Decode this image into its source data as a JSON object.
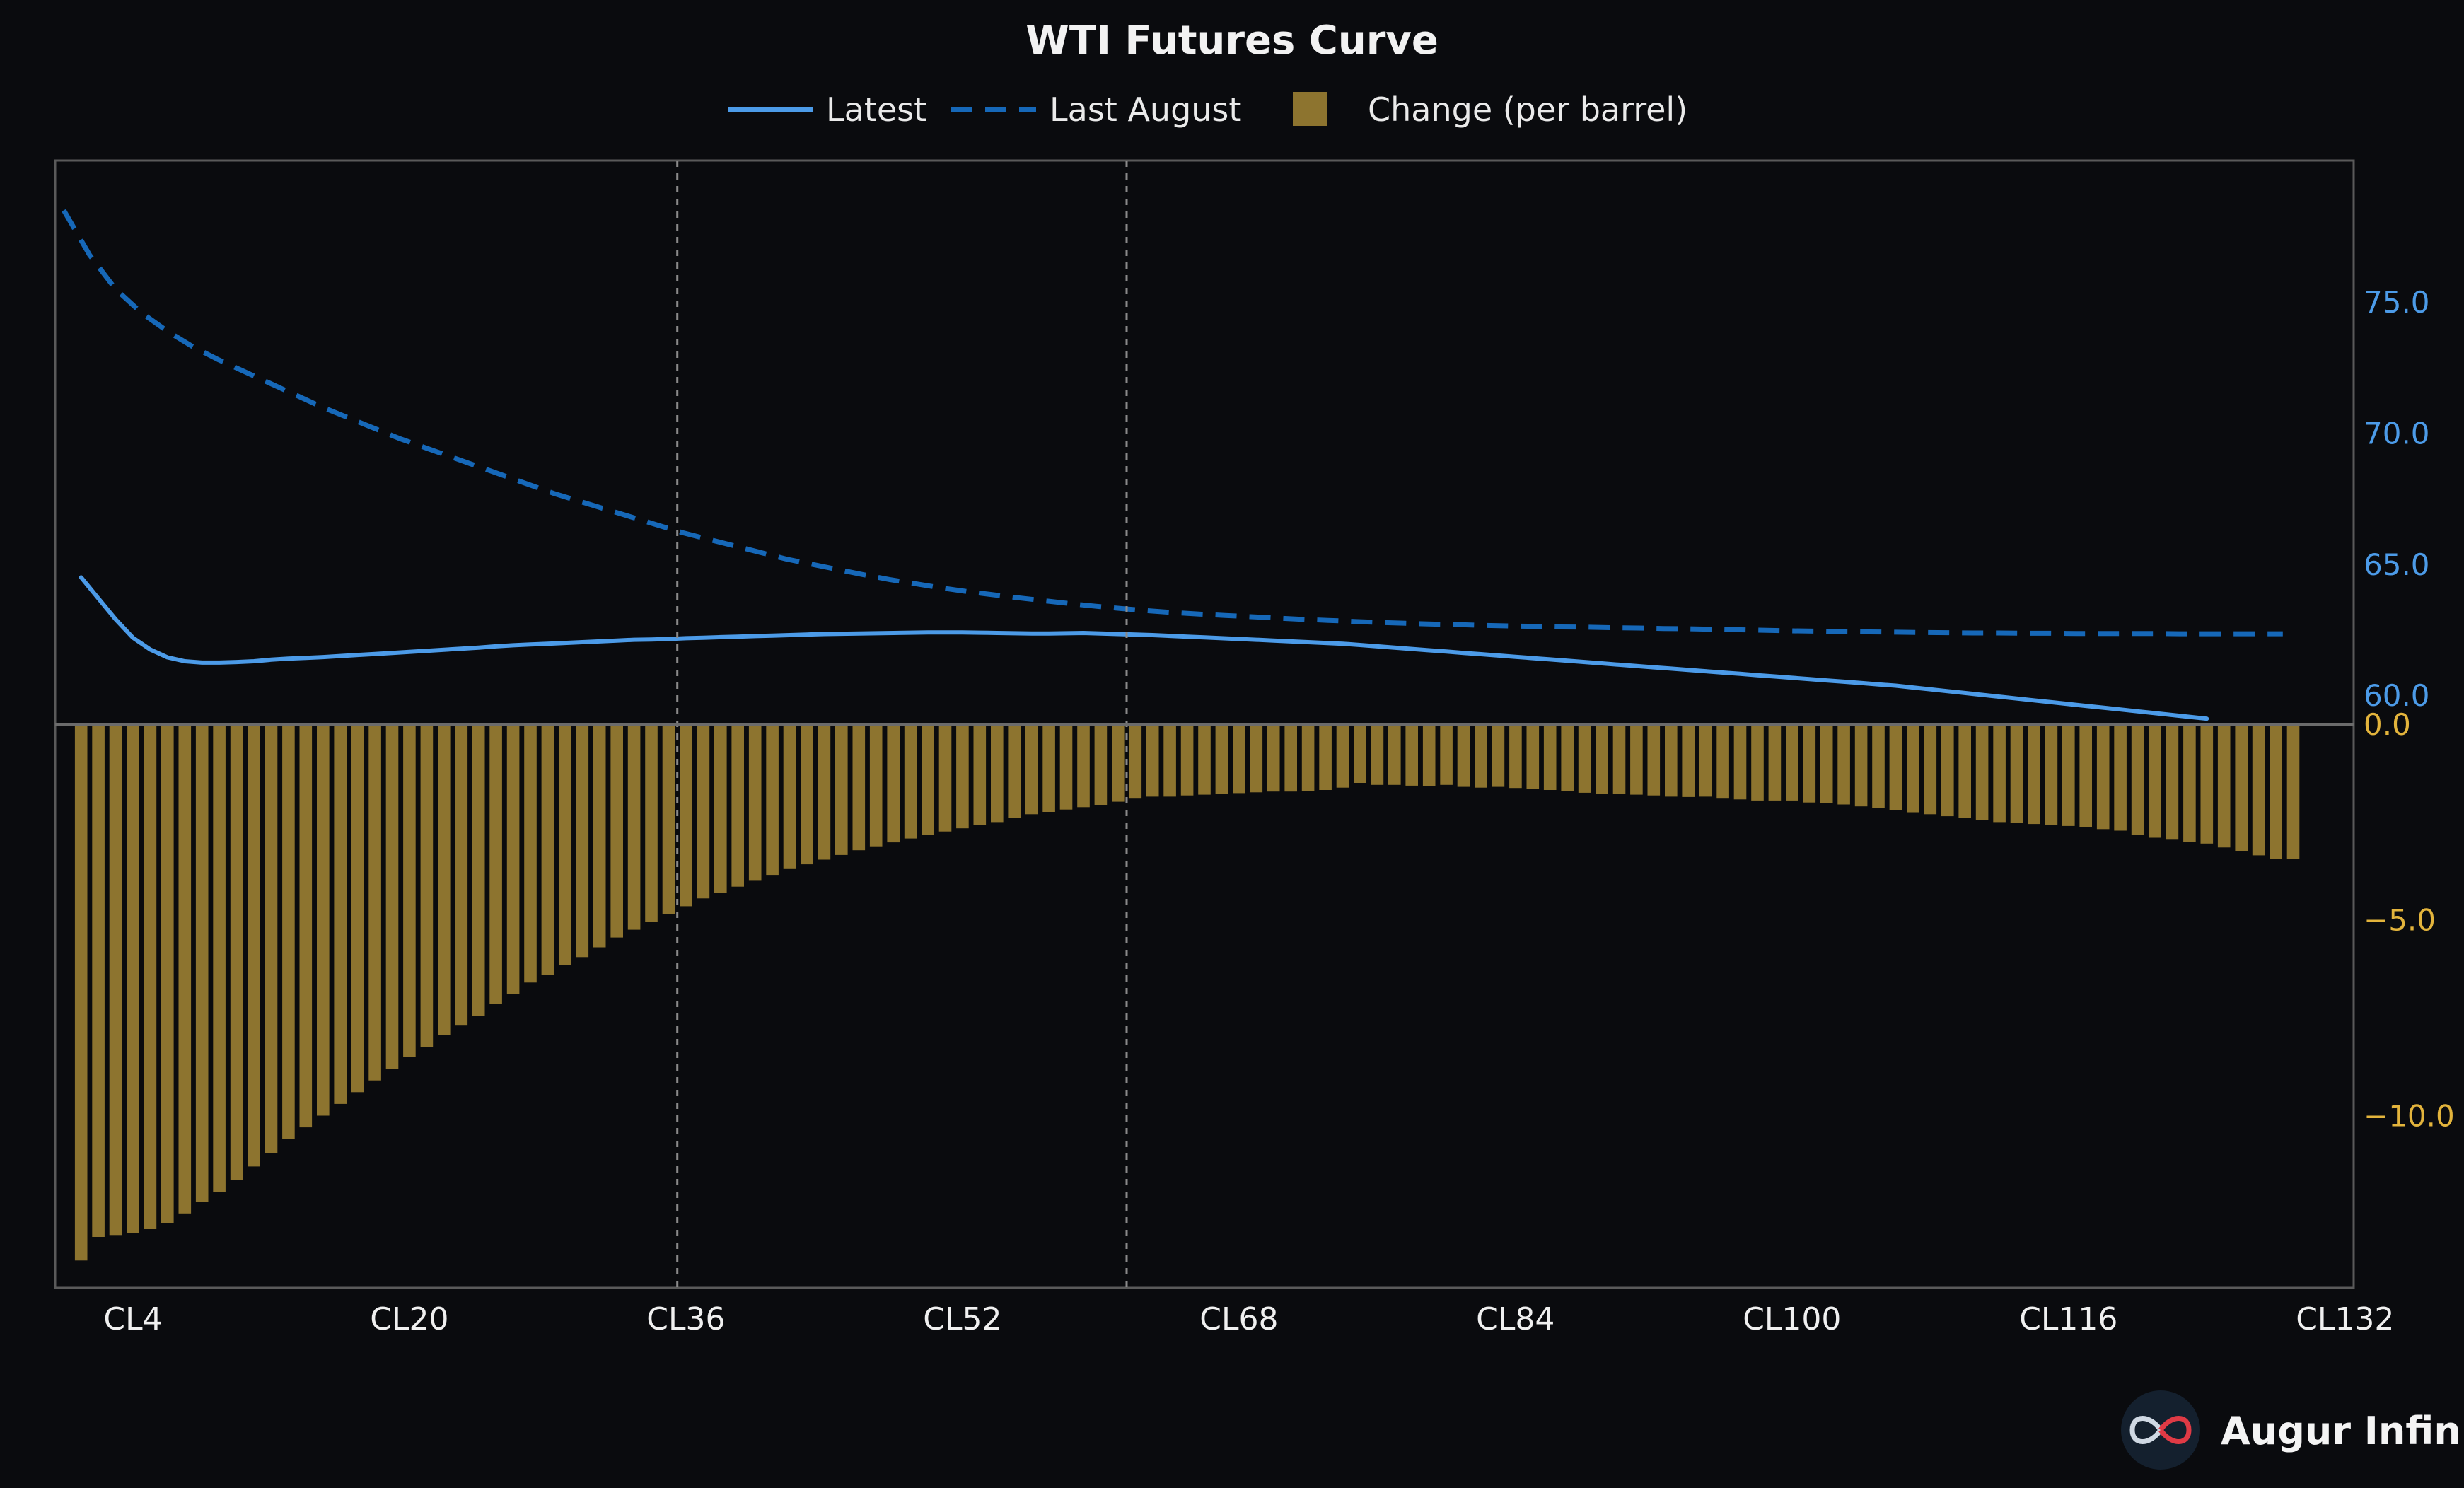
{
  "chart_data": {
    "type": "line",
    "title": "WTI Futures Curve",
    "legend": {
      "placement": "top-center",
      "entries": [
        {
          "label": "Latest",
          "style": "solid",
          "color": "#4c9be8"
        },
        {
          "label": "Last August",
          "style": "dashed",
          "color": "#1668b8"
        },
        {
          "label": "Change (per barrel)",
          "style": "bar",
          "color": "#8d742f"
        }
      ]
    },
    "x_axis": {
      "tick_labels": [
        "CL4",
        "CL20",
        "CL36",
        "CL52",
        "CL68",
        "CL84",
        "CL100",
        "CL116",
        "CL132"
      ],
      "tick_positions": [
        4,
        20,
        36,
        52,
        68,
        84,
        100,
        116,
        132
      ],
      "range": [
        -0.5,
        132.5
      ],
      "reference_lines": [
        35.5,
        61.5
      ]
    },
    "y_axes": {
      "price": {
        "ticks": [
          "60.0",
          "65.0",
          "70.0",
          "75.0"
        ],
        "tick_values": [
          60,
          65,
          70,
          75
        ],
        "range": [
          58.9,
          80.4
        ],
        "side": "right",
        "color": "#4c9be8"
      },
      "change": {
        "ticks": [
          "0.0",
          "−5.0",
          "−10.0"
        ],
        "tick_values": [
          0,
          -5,
          -10
        ],
        "range": [
          -14.4,
          0
        ],
        "side": "right",
        "color": "#e3b43c"
      }
    },
    "series": [
      {
        "name": "Latest",
        "x_start": 1,
        "values": [
          64.5,
          63.7,
          62.9,
          62.2,
          61.75,
          61.45,
          61.3,
          61.25,
          61.25,
          61.27,
          61.3,
          61.36,
          61.4,
          61.43,
          61.46,
          61.5,
          61.54,
          61.58,
          61.62,
          61.66,
          61.7,
          61.74,
          61.78,
          61.82,
          61.87,
          61.91,
          61.94,
          61.97,
          62.0,
          62.03,
          62.06,
          62.09,
          62.12,
          62.13,
          62.15,
          62.18,
          62.2,
          62.22,
          62.24,
          62.26,
          62.28,
          62.3,
          62.32,
          62.34,
          62.35,
          62.36,
          62.37,
          62.38,
          62.39,
          62.4,
          62.4,
          62.4,
          62.39,
          62.38,
          62.37,
          62.36,
          62.36,
          62.37,
          62.38,
          62.36,
          62.34,
          62.32,
          62.3,
          62.27,
          62.24,
          62.21,
          62.18,
          62.15,
          62.12,
          62.09,
          62.06,
          62.03,
          62.0,
          61.97,
          61.92,
          61.87,
          61.82,
          61.77,
          61.72,
          61.67,
          61.62,
          61.57,
          61.52,
          61.47,
          61.42,
          61.37,
          61.32,
          61.27,
          61.22,
          61.17,
          61.12,
          61.07,
          61.02,
          60.97,
          60.92,
          60.87,
          60.82,
          60.77,
          60.72,
          60.67,
          60.62,
          60.57,
          60.52,
          60.47,
          60.42,
          60.37,
          60.3,
          60.23,
          60.16,
          60.09,
          60.02,
          59.95,
          59.88,
          59.81,
          59.74,
          59.67,
          59.6,
          59.53,
          59.46,
          59.39,
          59.32,
          59.25,
          59.18,
          59.11
        ]
      },
      {
        "name": "Last August",
        "x_start": 0,
        "values": [
          78.5,
          76.8,
          75.5,
          74.6,
          73.9,
          73.3,
          72.8,
          72.35,
          71.9,
          71.45,
          71.0,
          70.6,
          70.2,
          69.8,
          69.45,
          69.1,
          68.75,
          68.4,
          68.05,
          67.7,
          67.4,
          67.1,
          66.8,
          66.5,
          66.2,
          65.95,
          65.7,
          65.45,
          65.2,
          65.0,
          64.8,
          64.6,
          64.42,
          64.26,
          64.1,
          63.96,
          63.84,
          63.72,
          63.61,
          63.5,
          63.4,
          63.31,
          63.23,
          63.16,
          63.1,
          63.05,
          63.0,
          62.95,
          62.9,
          62.86,
          62.82,
          62.78,
          62.75,
          62.72,
          62.7,
          62.67,
          62.65,
          62.63,
          62.61,
          62.6,
          62.58,
          62.57,
          62.55,
          62.54,
          62.52,
          62.5,
          62.48,
          62.46,
          62.45,
          62.43,
          62.42,
          62.41,
          62.4,
          62.39,
          62.38,
          62.38,
          62.37,
          62.37,
          62.36,
          62.36,
          62.36,
          62.36,
          62.35,
          62.35,
          62.35,
          62.35,
          62.35
        ]
      },
      {
        "name": "Change (per barrel)",
        "type": "bar",
        "x_start": 1,
        "values": [
          -13.7,
          -13.1,
          -13.05,
          -13.0,
          -12.9,
          -12.75,
          -12.5,
          -12.2,
          -11.95,
          -11.65,
          -11.3,
          -10.95,
          -10.6,
          -10.3,
          -10.0,
          -9.7,
          -9.4,
          -9.1,
          -8.8,
          -8.5,
          -8.25,
          -7.95,
          -7.7,
          -7.45,
          -7.15,
          -6.9,
          -6.6,
          -6.4,
          -6.15,
          -5.95,
          -5.7,
          -5.45,
          -5.25,
          -5.05,
          -4.85,
          -4.65,
          -4.45,
          -4.3,
          -4.15,
          -4.0,
          -3.85,
          -3.7,
          -3.58,
          -3.46,
          -3.34,
          -3.22,
          -3.12,
          -3.02,
          -2.92,
          -2.82,
          -2.74,
          -2.66,
          -2.58,
          -2.5,
          -2.4,
          -2.3,
          -2.24,
          -2.18,
          -2.12,
          -2.06,
          -1.98,
          -1.9,
          -1.85,
          -1.85,
          -1.82,
          -1.8,
          -1.78,
          -1.76,
          -1.74,
          -1.72,
          -1.72,
          -1.7,
          -1.68,
          -1.62,
          -1.5,
          -1.55,
          -1.55,
          -1.57,
          -1.58,
          -1.55,
          -1.6,
          -1.62,
          -1.6,
          -1.63,
          -1.65,
          -1.68,
          -1.7,
          -1.75,
          -1.77,
          -1.78,
          -1.8,
          -1.82,
          -1.85,
          -1.86,
          -1.85,
          -1.9,
          -1.92,
          -1.95,
          -1.95,
          -1.95,
          -2.0,
          -2.02,
          -2.05,
          -2.1,
          -2.15,
          -2.2,
          -2.25,
          -2.3,
          -2.35,
          -2.4,
          -2.45,
          -2.5,
          -2.52,
          -2.55,
          -2.58,
          -2.6,
          -2.62,
          -2.68,
          -2.72,
          -2.82,
          -2.9,
          -2.95,
          -3.0,
          -3.05,
          -3.15,
          -3.25,
          -3.35,
          -3.45,
          -3.45
        ]
      }
    ],
    "grid": false
  },
  "branding": {
    "name": "Augur Infinity",
    "icon": "infinity-logo-icon"
  },
  "colors": {
    "background": "#0a0b0e",
    "latest": "#4c9be8",
    "last_august": "#1668b8",
    "change_bar": "#8d742f",
    "frame": "#5a5a5a",
    "reference_line": "#8a8a8a"
  }
}
